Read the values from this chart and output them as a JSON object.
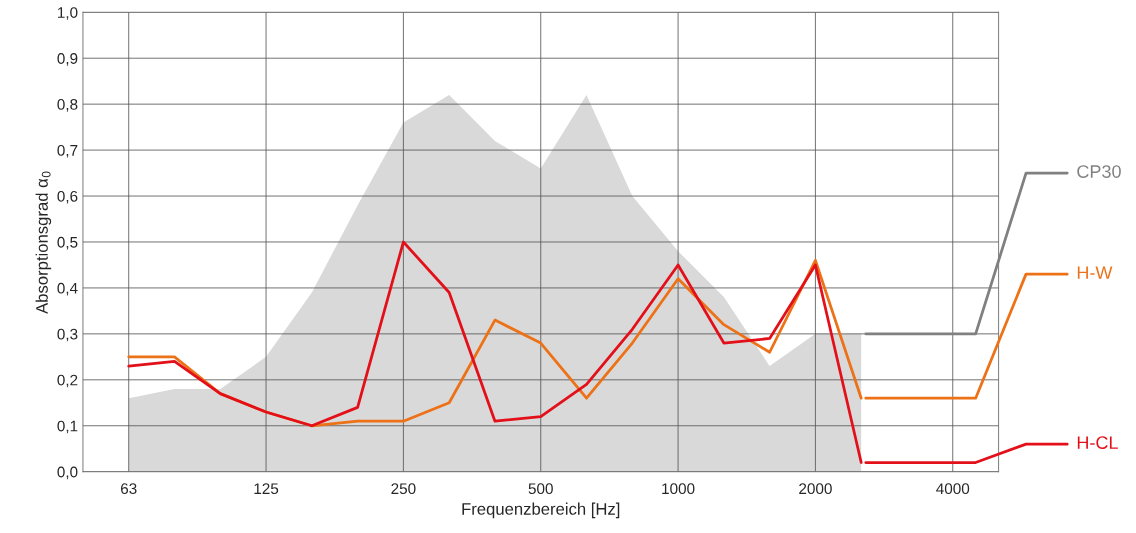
{
  "chart_data": {
    "type": "line",
    "xlabel": "Frequenzbereich [Hz]",
    "ylabel": "Absorptionsgrad α$_{0}$",
    "categories": [
      null,
      "63",
      null,
      null,
      "125",
      null,
      null,
      "250",
      null,
      null,
      "500",
      null,
      null,
      "1000",
      null,
      null,
      "2000",
      null,
      null,
      "4000",
      null
    ],
    "series": [
      {
        "name": "CP30",
        "type": "area",
        "color": "#d9d9d9",
        "values": [
          null,
          0.16,
          0.18,
          0.18,
          0.25,
          0.39,
          0.58,
          0.76,
          0.82,
          0.72,
          0.66,
          0.82,
          0.6,
          0.48,
          0.38,
          0.23,
          0.3,
          0.3,
          null,
          null,
          null
        ]
      },
      {
        "name": "H-W",
        "color": "#ed7117",
        "values": [
          null,
          0.25,
          0.25,
          0.17,
          0.13,
          0.1,
          0.11,
          0.11,
          0.15,
          0.33,
          0.28,
          0.16,
          0.28,
          0.42,
          0.32,
          0.26,
          0.46,
          0.16,
          null,
          null,
          null
        ]
      },
      {
        "name": "H-CL",
        "color": "#e3101a",
        "values": [
          null,
          0.23,
          0.24,
          0.17,
          0.13,
          0.1,
          0.14,
          0.5,
          0.39,
          0.11,
          0.12,
          0.19,
          0.31,
          0.45,
          0.28,
          0.29,
          0.45,
          0.02,
          null,
          null,
          null
        ]
      }
    ],
    "ylim": [
      0,
      1.0
    ],
    "yticks": [
      {
        "value": 0,
        "label": "0,0"
      },
      {
        "value": 0.1,
        "label": "0,1"
      },
      {
        "value": 0.2,
        "label": "0,2"
      },
      {
        "value": 0.3,
        "label": "0,3"
      },
      {
        "value": 0.4,
        "label": "0,4"
      },
      {
        "value": 0.5,
        "label": "0,5"
      },
      {
        "value": 0.6,
        "label": "0,6"
      },
      {
        "value": 0.7,
        "label": "0,7"
      },
      {
        "value": 0.8,
        "label": "0,8"
      },
      {
        "value": 0.9,
        "label": "0,9"
      },
      {
        "value": 1.0,
        "label": "1,0"
      }
    ],
    "grid": true,
    "legend": "right",
    "line_style": "solid",
    "marker": "none"
  }
}
